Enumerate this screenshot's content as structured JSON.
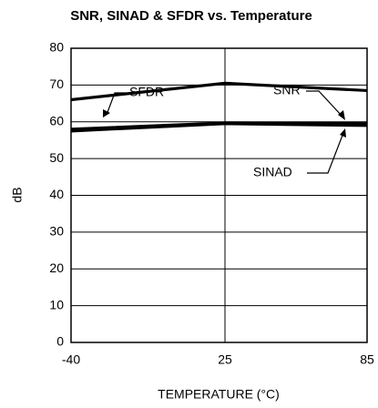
{
  "chart_data": {
    "type": "line",
    "title": "SNR, SINAD & SFDR vs. Temperature",
    "x_label": "TEMPERATURE (°C)",
    "y_label": "dB",
    "x": [
      -40,
      25,
      85
    ],
    "series": [
      {
        "name": "SFDR",
        "color": "#000000",
        "values": [
          66,
          70.5,
          68.5
        ]
      },
      {
        "name": "SNR",
        "color": "#000000",
        "values": [
          58,
          59.7,
          59.5
        ]
      },
      {
        "name": "SINAD",
        "color": "#000000",
        "values": [
          57.5,
          59.5,
          59
        ]
      }
    ],
    "xlim": [
      -40,
      85
    ],
    "xticks": [
      -40,
      25,
      85
    ],
    "ylim": [
      0,
      80
    ],
    "yticks": [
      0,
      10,
      20,
      30,
      40,
      50,
      60,
      70,
      80
    ],
    "grid": true
  }
}
